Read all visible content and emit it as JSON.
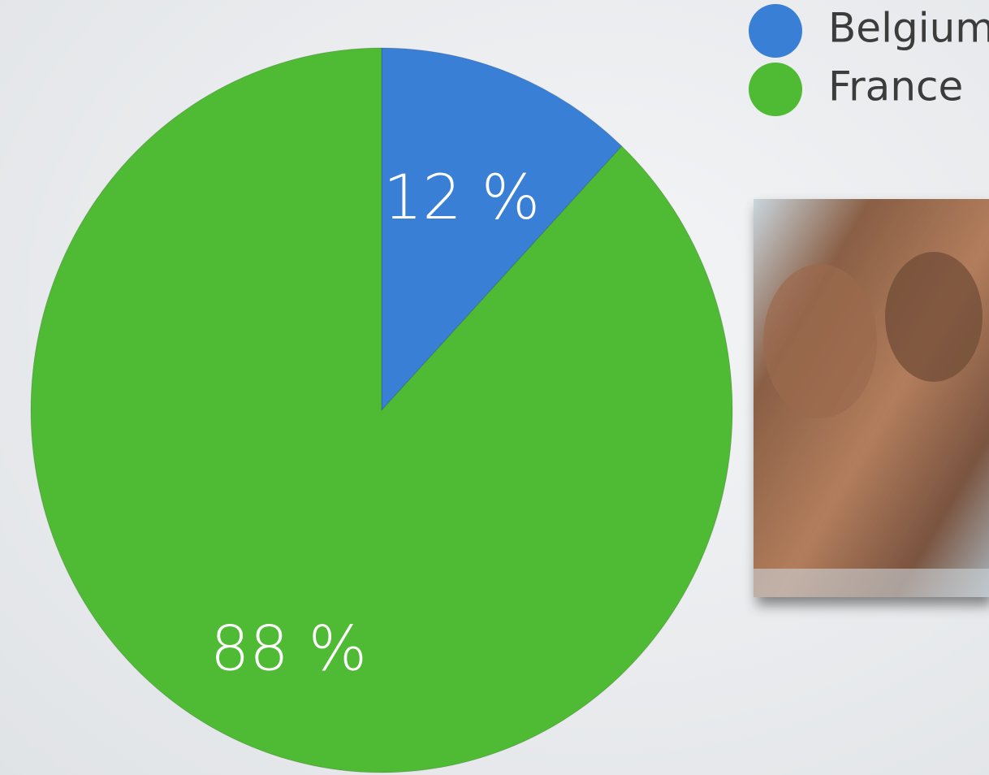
{
  "chart_data": {
    "type": "pie",
    "categories": [
      "Belgium",
      "France"
    ],
    "values": [
      12,
      88
    ],
    "value_labels": [
      "12 %",
      "88 %"
    ],
    "colors": [
      "#3a7fd6",
      "#4fba33"
    ]
  }
}
